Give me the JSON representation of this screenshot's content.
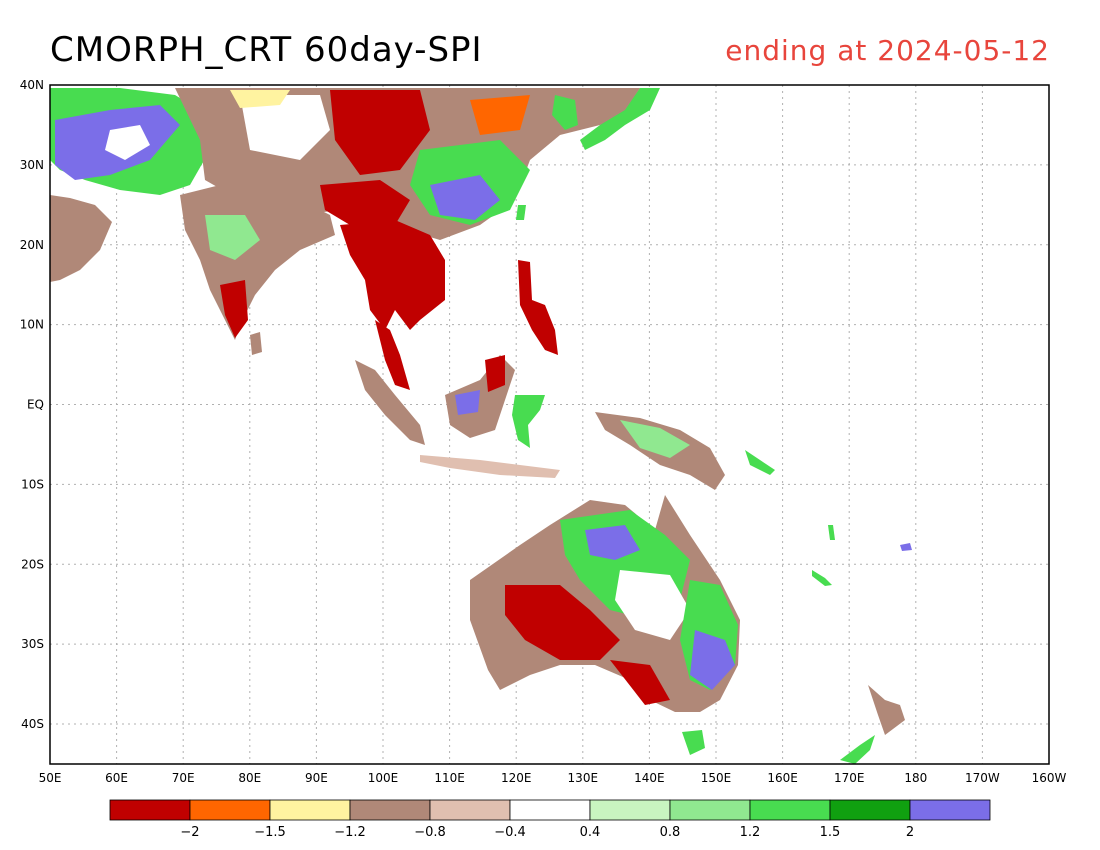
{
  "title": "CMORPH_CRT 60day-SPI",
  "subtitle": "ending at 2024-05-12",
  "lat_ticks": [
    "40N",
    "30N",
    "20N",
    "10N",
    "EQ",
    "10S",
    "20S",
    "30S",
    "40S"
  ],
  "lon_ticks": [
    "50E",
    "60E",
    "70E",
    "80E",
    "90E",
    "100E",
    "110E",
    "120E",
    "130E",
    "140E",
    "150E",
    "160E",
    "170E",
    "180",
    "170W",
    "160W"
  ],
  "colorbar": {
    "colors": [
      "#c00000",
      "#ff6600",
      "#fff3a0",
      "#b08878",
      "#e0bfb0",
      "#ffffff",
      "#c8f5c0",
      "#90e890",
      "#48dc50",
      "#10a010",
      "#7b6ee8"
    ],
    "labels": [
      "-2",
      "-1.5",
      "-1.2",
      "-0.8",
      "-0.4",
      "0.4",
      "0.8",
      "1.2",
      "1.5",
      "2"
    ]
  },
  "colors": {
    "subtitle": "#e8453c",
    "grid": "#b0b0b0",
    "coast": "#000000"
  }
}
